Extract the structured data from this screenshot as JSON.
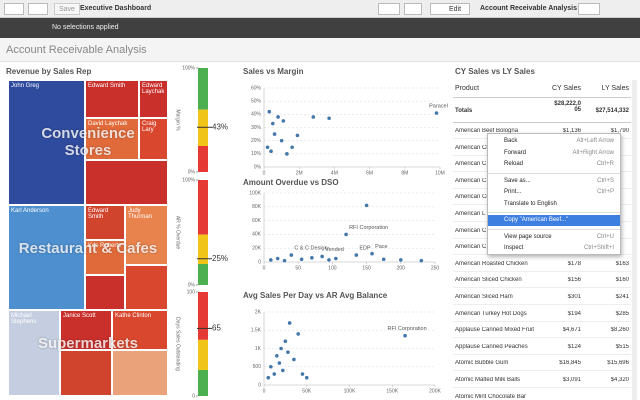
{
  "toolbar": {
    "save": "Save",
    "sheet": "Executive Dashboard",
    "edit": "Edit",
    "app": "Account Receivable Analysis"
  },
  "selection_bar": "No selections applied",
  "sheet_title": "Account Receivable Analysis",
  "treemap": {
    "title": "Revenue by Sales Rep",
    "groups": [
      {
        "name": "Convenience Stores",
        "tiles": [
          "John Greg",
          "Edward Smith",
          "Edward Laychak",
          "David Laychak",
          "Craig Lary"
        ]
      },
      {
        "name": "Restaurant & Cafes",
        "tiles": [
          "Karl Anderson",
          "Edward Smith",
          "Judy Thurman",
          "Kris Roberts"
        ]
      },
      {
        "name": "Supermarkets",
        "tiles": [
          "Michael Stephens",
          "Janice Scott",
          "Kathe Clinton"
        ]
      }
    ]
  },
  "gauges": [
    {
      "label": "Margin %",
      "value": 43,
      "value_label": "43%",
      "range": [
        0,
        100
      ],
      "ticks": [
        {
          "value": 100,
          "label": "100%"
        },
        {
          "value": 0,
          "label": "0%"
        }
      ]
    },
    {
      "label": "AR % Overdue",
      "value": 25,
      "value_label": "25%",
      "range": [
        0,
        100
      ],
      "ticks": [
        {
          "value": 100,
          "label": "100%"
        },
        {
          "value": 0,
          "label": "0%"
        }
      ]
    },
    {
      "label": "Days Sales Outstanding",
      "value": 65,
      "range": [
        0,
        100
      ],
      "ticks": [
        100,
        0
      ]
    }
  ],
  "scatters": [
    {
      "type": "scatter",
      "title": "Sales vs Margin",
      "color": "#4477aa",
      "x": [
        300000,
        500000,
        800000,
        1100000,
        600000,
        1000000,
        1600000,
        1900000,
        2800000,
        3700000,
        200000,
        400000,
        1300000,
        9800000
      ],
      "y": [
        42,
        33,
        38,
        35,
        25,
        20,
        15,
        24,
        38,
        37,
        15,
        12,
        10,
        41
      ],
      "point_labels": [
        null,
        null,
        null,
        null,
        null,
        null,
        null,
        null,
        null,
        null,
        null,
        null,
        null,
        "Paracel"
      ],
      "xlim": [
        0,
        10000000
      ],
      "ylim": [
        0,
        60
      ],
      "xticks": [
        0,
        {
          "value": 2000000,
          "label": "2M"
        },
        {
          "value": 4000000,
          "label": "4M"
        },
        {
          "value": 6000000,
          "label": "6M"
        },
        {
          "value": 8000000,
          "label": "8M"
        },
        {
          "value": 10000000,
          "label": "10M"
        }
      ],
      "yticks": [
        {
          "value": 0,
          "label": "0%"
        },
        {
          "value": 10,
          "label": "10%"
        },
        {
          "value": 20,
          "label": "20%"
        },
        {
          "value": 30,
          "label": "30%"
        },
        {
          "value": 40,
          "label": "40%"
        },
        {
          "value": 50,
          "label": "50%"
        },
        {
          "value": 60,
          "label": "60%"
        }
      ]
    },
    {
      "type": "scatter",
      "title": "Amount Overdue vs DSO",
      "color": "#4477aa",
      "x": [
        10,
        20,
        30,
        40,
        55,
        70,
        85,
        95,
        105,
        120,
        135,
        150,
        158,
        175,
        200,
        230
      ],
      "y": [
        3000,
        5000,
        2000,
        10000,
        4000,
        6000,
        8000,
        3000,
        5000,
        40000,
        10000,
        82000,
        12000,
        4000,
        3000,
        2000
      ],
      "point_labels": [
        null,
        null,
        null,
        "C & C Design",
        null,
        null,
        "Vended",
        null,
        null,
        "RFI Corporation",
        "EDP",
        null,
        "Pace",
        null,
        null,
        null
      ],
      "xlim": [
        0,
        250
      ],
      "ylim": [
        0,
        100000
      ],
      "xticks": [
        0,
        50,
        100,
        150,
        200,
        250
      ],
      "yticks": [
        0,
        {
          "value": 20000,
          "label": "20K"
        },
        {
          "value": 40000,
          "label": "40K"
        },
        {
          "value": 60000,
          "label": "60K"
        },
        {
          "value": 80000,
          "label": "80K"
        },
        {
          "value": 100000,
          "label": "100K"
        }
      ]
    },
    {
      "type": "scatter",
      "title": "Avg Sales Per Day vs AR Avg Balance",
      "color": "#4477aa",
      "x": [
        5000,
        8000,
        12000,
        15000,
        18000,
        20000,
        22000,
        25000,
        28000,
        30000,
        35000,
        40000,
        45000,
        50000,
        165000
      ],
      "y": [
        200,
        500,
        300,
        800,
        600,
        1000,
        400,
        1200,
        900,
        1700,
        700,
        1400,
        300,
        200,
        1350
      ],
      "point_labels": [
        null,
        null,
        null,
        null,
        null,
        null,
        null,
        null,
        null,
        null,
        null,
        null,
        null,
        null,
        "RFI Corporation"
      ],
      "xlim": [
        0,
        200000
      ],
      "ylim": [
        0,
        2000
      ],
      "xticks": [
        0,
        {
          "value": 50000,
          "label": "50K"
        },
        {
          "value": 100000,
          "label": "100K"
        },
        {
          "value": 150000,
          "label": "150K"
        },
        {
          "value": 200000,
          "label": "200K"
        }
      ],
      "yticks": [
        0,
        500,
        {
          "value": 1000,
          "label": "1K"
        },
        {
          "value": 1500,
          "label": "1.5K"
        },
        {
          "value": 2000,
          "label": "2K"
        }
      ]
    }
  ],
  "table": {
    "title": "CY Sales vs LY Sales",
    "columns": [
      "Product",
      "CY Sales",
      "LY Sales"
    ],
    "totals": [
      "Totals",
      "$28,222,005",
      "$27,514,332"
    ],
    "rows": [
      [
        "American Beef Bologna",
        "$1,136",
        "$1,790"
      ],
      [
        "American Chi"
      ],
      [
        "American C"
      ],
      [
        "American C"
      ],
      [
        "American Ci"
      ],
      [
        "American L"
      ],
      [
        "American C"
      ],
      [
        "American C"
      ],
      [
        "American Roasted Chicken",
        "$178",
        "$163"
      ],
      [
        "American Sliced Chicken",
        "$156",
        "$160"
      ],
      [
        "American Sliced Ham",
        "$301",
        "$241"
      ],
      [
        "American Turkey Hot Dogs",
        "$194",
        "$285"
      ],
      [
        "Applause Canned Mixed Fruit",
        "$4,671",
        "$8,260"
      ],
      [
        "Applause Canned Peaches",
        "$124",
        "$515"
      ],
      [
        "Atomic Bubble Gum",
        "$16,845",
        "$15,696"
      ],
      [
        "Atomic Malted Milk Balls",
        "$3,091",
        "$4,320"
      ],
      [
        "Atomic Mint Chocolate Bar"
      ]
    ]
  },
  "context_menu": {
    "items": [
      {
        "label": "Back",
        "shortcut": "Alt+Left Arrow"
      },
      {
        "label": "Forward",
        "shortcut": "Alt+Right Arrow"
      },
      {
        "label": "Reload",
        "shortcut": "Ctrl+R"
      },
      {
        "label": "Save as...",
        "shortcut": "Ctrl+S"
      },
      {
        "label": "Print...",
        "shortcut": "Ctrl+P"
      },
      {
        "label": "Translate to English"
      },
      {
        "label": "Copy \"American Beef...\""
      },
      {
        "label": "View page source",
        "shortcut": "Ctrl+U"
      },
      {
        "label": "Inspect",
        "shortcut": "Ctrl+Shift+I"
      }
    ]
  }
}
